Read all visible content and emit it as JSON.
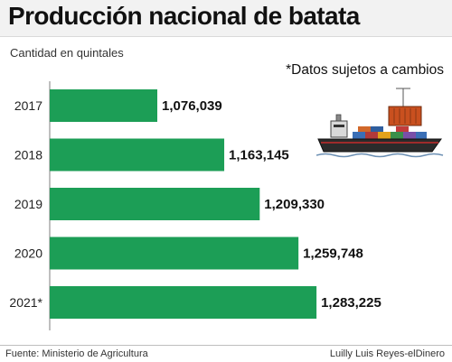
{
  "chart_data": {
    "type": "bar",
    "orientation": "horizontal",
    "title": "Producción nacional de batata",
    "unit_label": "Cantidad en quintales",
    "note": "*Datos sujetos a cambios",
    "categories": [
      "2017",
      "2018",
      "2019",
      "2020",
      "2021*"
    ],
    "values": [
      1076039,
      1163145,
      1209330,
      1259748,
      1283225
    ],
    "value_labels": [
      "1,076,039",
      "1,163,145",
      "1,209,330",
      "1,259,748",
      "1,283,225"
    ],
    "bar_color": "#1c9e56",
    "grid": false
  },
  "footer": {
    "source": "Fuente: Ministerio de Agricultura",
    "credit": "Luilly Luis Reyes-elDinero"
  },
  "icons": {
    "illustration": "cargo-ship-icon"
  }
}
